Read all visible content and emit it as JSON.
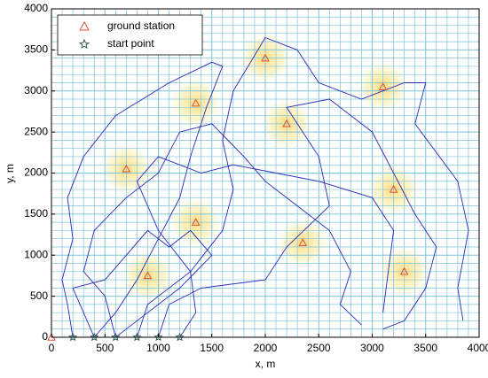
{
  "chart_data": {
    "type": "scatter",
    "x_label": "x, m",
    "y_label": "y, m",
    "xlim": [
      0,
      4000
    ],
    "ylim": [
      0,
      4000
    ],
    "xticks": [
      0,
      500,
      1000,
      1500,
      2000,
      2500,
      3000,
      3500,
      4000
    ],
    "yticks": [
      0,
      500,
      1000,
      1500,
      2000,
      2500,
      3000,
      3500,
      4000
    ],
    "grid": true,
    "grid_color": "#7cc4dc",
    "legend": "upper-left",
    "series": [
      {
        "name": "ground station",
        "color": "#e0503a",
        "marker": "triangle",
        "x": [
          0,
          2000,
          1350,
          2200,
          3100,
          700,
          3200,
          1350,
          2350,
          900,
          3300
        ],
        "y": [
          0,
          3400,
          2850,
          2600,
          3050,
          2050,
          1800,
          1400,
          1150,
          750,
          800
        ]
      },
      {
        "name": "start point",
        "color": "#2f5f55",
        "marker": "star",
        "x": [
          200,
          400,
          600,
          800,
          1000,
          1200
        ],
        "y": [
          0,
          0,
          0,
          0,
          0,
          0
        ]
      }
    ],
    "line_color": "#2a2ab8",
    "trajectories": [
      {
        "x": [
          200,
          150,
          100,
          200,
          150,
          300,
          600,
          1100,
          1500,
          1600,
          1450,
          1300,
          1200,
          1000,
          800,
          600,
          400
        ],
        "y": [
          0,
          400,
          700,
          1200,
          1700,
          2200,
          2700,
          3100,
          3350,
          3300,
          2800,
          2200,
          1700,
          1200,
          700,
          300,
          0
        ]
      },
      {
        "x": [
          600,
          500,
          300,
          400,
          700,
          1000,
          1200,
          1500,
          1800,
          2000,
          2300,
          2600,
          2800,
          2700,
          2900
        ],
        "y": [
          0,
          500,
          800,
          1300,
          1700,
          2000,
          2500,
          2600,
          2200,
          1900,
          1600,
          1300,
          800,
          400,
          150
        ]
      },
      {
        "x": [
          800,
          900,
          1300,
          1600,
          1700,
          1600,
          1700,
          2000,
          2300,
          2500,
          2900,
          3300,
          3500,
          3400,
          3800,
          3900,
          3800,
          3850
        ],
        "y": [
          0,
          400,
          800,
          1300,
          1800,
          2400,
          3000,
          3650,
          3500,
          3100,
          2900,
          3100,
          3100,
          2600,
          1900,
          1300,
          600,
          200
        ]
      },
      {
        "x": [
          1000,
          1100,
          1400,
          2000,
          2200,
          2600,
          2500,
          2200,
          2600,
          3000,
          3200,
          3400,
          3600,
          3500,
          3300,
          3100
        ],
        "y": [
          0,
          400,
          600,
          700,
          1100,
          1600,
          2200,
          2800,
          2900,
          2500,
          2000,
          1500,
          1100,
          600,
          200,
          100
        ]
      },
      {
        "x": [
          1200,
          1350,
          1300,
          1000,
          800,
          1000,
          1400,
          1700,
          2100,
          2500,
          3000,
          3200,
          3150,
          3100
        ],
        "y": [
          0,
          300,
          800,
          1300,
          1900,
          2200,
          2000,
          2100,
          2000,
          1900,
          1700,
          1300,
          800,
          300
        ]
      },
      {
        "x": [
          400,
          300,
          200,
          500,
          700,
          900,
          1100,
          1300,
          1500,
          1200,
          900,
          700,
          600
        ],
        "y": [
          0,
          300,
          600,
          700,
          1000,
          1300,
          1100,
          1300,
          1000,
          600,
          300,
          100,
          0
        ]
      }
    ]
  }
}
